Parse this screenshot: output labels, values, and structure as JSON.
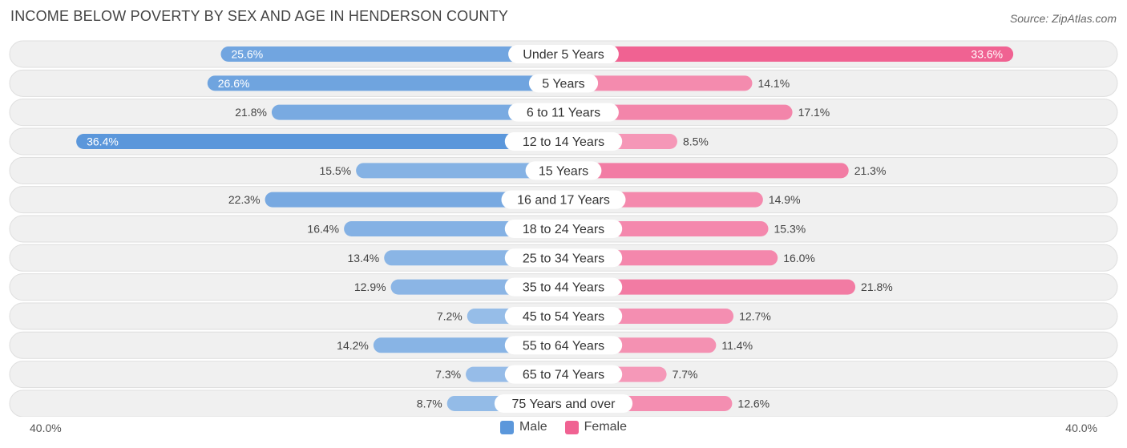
{
  "title": "INCOME BELOW POVERTY BY SEX AND AGE IN HENDERSON COUNTY",
  "source": "Source: ZipAtlas.com",
  "axis": {
    "left_label": "40.0%",
    "right_label": "40.0%"
  },
  "legend": {
    "male_label": "Male",
    "female_label": "Female"
  },
  "colors": {
    "male": "#6fa3dc",
    "male_strong": "#5b97db",
    "female": "#f48fb1",
    "female_strong": "#f06292",
    "row_bg": "#f0f0f0",
    "row_border": "#dedede"
  },
  "chart_data": {
    "type": "bar",
    "orientation": "horizontal-diverging",
    "title": "INCOME BELOW POVERTY BY SEX AND AGE IN HENDERSON COUNTY",
    "xlim": [
      -40,
      40
    ],
    "categories": [
      "Under 5 Years",
      "5 Years",
      "6 to 11 Years",
      "12 to 14 Years",
      "15 Years",
      "16 and 17 Years",
      "18 to 24 Years",
      "25 to 34 Years",
      "35 to 44 Years",
      "45 to 54 Years",
      "55 to 64 Years",
      "65 to 74 Years",
      "75 Years and over"
    ],
    "series": [
      {
        "name": "Male",
        "values": [
          25.6,
          26.6,
          21.8,
          36.4,
          15.5,
          22.3,
          16.4,
          13.4,
          12.9,
          7.2,
          14.2,
          7.3,
          8.7
        ]
      },
      {
        "name": "Female",
        "values": [
          33.6,
          14.1,
          17.1,
          8.5,
          21.3,
          14.9,
          15.3,
          16.0,
          21.8,
          12.7,
          11.4,
          7.7,
          12.6
        ]
      }
    ],
    "value_labels": {
      "male": [
        "25.6%",
        "26.6%",
        "21.8%",
        "36.4%",
        "15.5%",
        "22.3%",
        "16.4%",
        "13.4%",
        "12.9%",
        "7.2%",
        "14.2%",
        "7.3%",
        "8.7%"
      ],
      "female": [
        "33.6%",
        "14.1%",
        "17.1%",
        "8.5%",
        "21.3%",
        "14.9%",
        "15.3%",
        "16.0%",
        "21.8%",
        "12.7%",
        "11.4%",
        "7.7%",
        "12.6%"
      ]
    }
  }
}
